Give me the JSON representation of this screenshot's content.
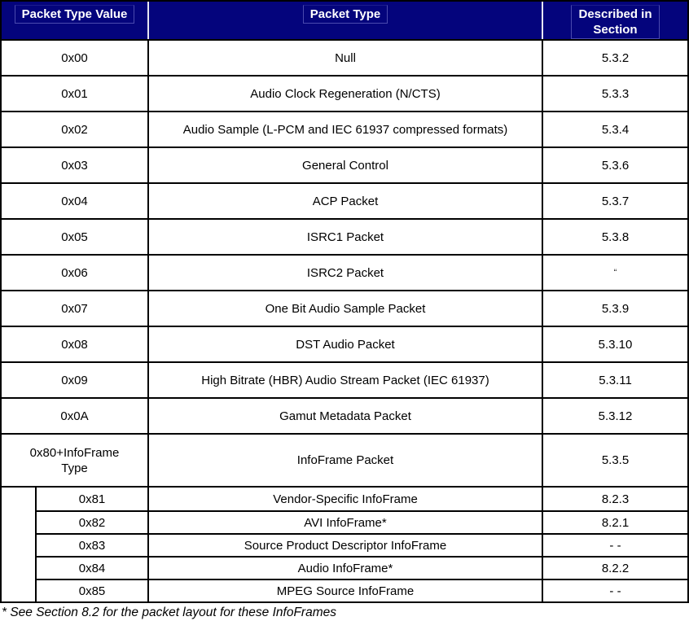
{
  "table": {
    "headers": [
      "Packet Type Value",
      "Packet Type",
      "Described in\nSection"
    ],
    "rows": [
      {
        "value": "0x00",
        "type": "Null",
        "section": "5.3.2"
      },
      {
        "value": "0x01",
        "type": "Audio Clock Regeneration (N/CTS)",
        "section": "5.3.3"
      },
      {
        "value": "0x02",
        "type": "Audio Sample (L-PCM and IEC 61937 compressed formats)",
        "section": "5.3.4"
      },
      {
        "value": "0x03",
        "type": "General Control",
        "section": "5.3.6"
      },
      {
        "value": "0x04",
        "type": "ACP Packet",
        "section": "5.3.7"
      },
      {
        "value": "0x05",
        "type": "ISRC1 Packet",
        "section": "5.3.8"
      },
      {
        "value": "0x06",
        "type": "ISRC2 Packet",
        "section": "“"
      },
      {
        "value": "0x07",
        "type": "One Bit Audio Sample Packet",
        "section": "5.3.9"
      },
      {
        "value": "0x08",
        "type": "DST Audio Packet",
        "section": "5.3.10"
      },
      {
        "value": "0x09",
        "type": "High Bitrate (HBR) Audio Stream Packet (IEC 61937)",
        "section": "5.3.11"
      },
      {
        "value": "0x0A",
        "type": "Gamut Metadata Packet",
        "section": "5.3.12"
      },
      {
        "value": "0x80+InfoFrame\nType",
        "type": "InfoFrame Packet",
        "section": "5.3.5"
      }
    ],
    "sub_rows": [
      {
        "value": "0x81",
        "type": "Vendor-Specific InfoFrame",
        "section": "8.2.3"
      },
      {
        "value": "0x82",
        "type": "AVI InfoFrame*",
        "section": "8.2.1"
      },
      {
        "value": "0x83",
        "type": "Source Product Descriptor InfoFrame",
        "section": "- -"
      },
      {
        "value": "0x84",
        "type": "Audio InfoFrame*",
        "section": "8.2.2"
      },
      {
        "value": "0x85",
        "type": "MPEG Source InfoFrame",
        "section": "- -"
      }
    ],
    "footnote": "* See Section 8.2 for the packet layout for these InfoFrames"
  },
  "colors": {
    "header_bg": "#04047c",
    "header_text": "#ffffff",
    "border": "#000000",
    "header_divider": "#e6e6f2"
  }
}
